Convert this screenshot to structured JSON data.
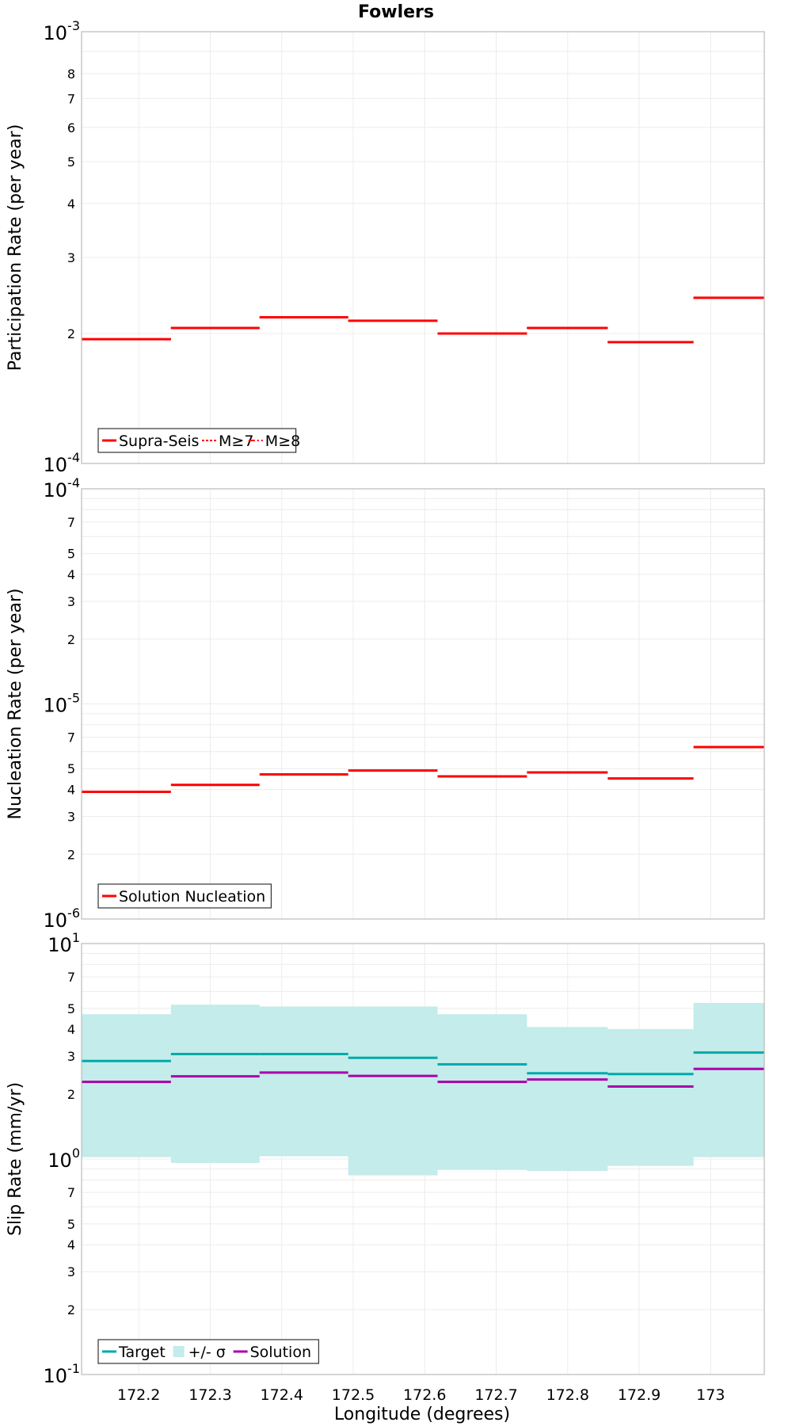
{
  "title": "Fowlers",
  "xlabel": "Longitude (degrees)",
  "x_ticks": [
    "172.2",
    "172.3",
    "172.4",
    "172.5",
    "172.6",
    "172.7",
    "172.8",
    "172.9",
    "173"
  ],
  "colors": {
    "supra_seis": "#ff0000",
    "target": "#00aaaa",
    "solution": "#aa00aa",
    "sigma_band": "#c3ecea",
    "grid": "#ececec",
    "frame": "#bbbbbb"
  },
  "chart_data": [
    {
      "type": "line",
      "step": true,
      "title": "Fowlers",
      "xlabel": "",
      "ylabel": "Participation Rate (per year)",
      "xlim": [
        172.12,
        173.075
      ],
      "ylim": [
        0.0001,
        0.001
      ],
      "yscale": "log",
      "grid": true,
      "legend_position": "bottom-left",
      "y_ticks": [
        {
          "value": 0.001,
          "base": "10",
          "exp": "-3"
        },
        {
          "value": 0.0008,
          "label": "8"
        },
        {
          "value": 0.0007,
          "label": "7"
        },
        {
          "value": 0.0006,
          "label": "6"
        },
        {
          "value": 0.0005,
          "label": "5"
        },
        {
          "value": 0.0004,
          "label": "4"
        },
        {
          "value": 0.0003,
          "label": "3"
        },
        {
          "value": 0.0002,
          "label": "2"
        },
        {
          "value": 0.0001,
          "base": "10",
          "exp": "-4"
        }
      ],
      "x_edges": [
        172.12,
        172.245,
        172.369,
        172.493,
        172.618,
        172.743,
        172.856,
        172.976,
        173.075
      ],
      "series": [
        {
          "name": "Supra-Seis",
          "dash": "solid",
          "color": "#ff0000",
          "values": [
            0.000194,
            0.000206,
            0.000218,
            0.000214,
            0.0002,
            0.000206,
            0.000191,
            0.000242
          ]
        },
        {
          "name": "M≥7",
          "dash": "dot",
          "color": "#ff0000",
          "values": [
            0.000194,
            0.000206,
            0.000218,
            0.000214,
            0.0002,
            0.000206,
            0.000191,
            0.000242
          ]
        },
        {
          "name": "M≥8",
          "dash": "dashdot",
          "color": "#ff0000",
          "values": [
            0.000194,
            0.000206,
            0.000218,
            0.000214,
            0.0002,
            0.000206,
            0.000191,
            0.000242
          ]
        }
      ]
    },
    {
      "type": "line",
      "step": true,
      "title": "",
      "xlabel": "",
      "ylabel": "Nucleation Rate (per year)",
      "xlim": [
        172.12,
        173.075
      ],
      "ylim": [
        1e-06,
        0.0001
      ],
      "yscale": "log",
      "grid": true,
      "legend_position": "bottom-left",
      "y_ticks": [
        {
          "value": 0.0001,
          "base": "10",
          "exp": "-4"
        },
        {
          "value": 7e-05,
          "label": "7"
        },
        {
          "value": 5e-05,
          "label": "5"
        },
        {
          "value": 4e-05,
          "label": "4"
        },
        {
          "value": 3e-05,
          "label": "3"
        },
        {
          "value": 2e-05,
          "label": "2"
        },
        {
          "value": 1e-05,
          "base": "10",
          "exp": "-5"
        },
        {
          "value": 7e-06,
          "label": "7"
        },
        {
          "value": 5e-06,
          "label": "5"
        },
        {
          "value": 4e-06,
          "label": "4"
        },
        {
          "value": 3e-06,
          "label": "3"
        },
        {
          "value": 2e-06,
          "label": "2"
        },
        {
          "value": 1e-06,
          "base": "10",
          "exp": "-6"
        }
      ],
      "x_edges": [
        172.12,
        172.245,
        172.369,
        172.493,
        172.618,
        172.743,
        172.856,
        172.976,
        173.075
      ],
      "series": [
        {
          "name": "Solution Nucleation",
          "dash": "solid",
          "color": "#ff0000",
          "values": [
            3.9e-06,
            4.2e-06,
            4.7e-06,
            4.9e-06,
            4.6e-06,
            4.8e-06,
            4.5e-06,
            6.3e-06
          ]
        }
      ]
    },
    {
      "type": "line",
      "step": true,
      "title": "",
      "xlabel": "Longitude (degrees)",
      "ylabel": "Slip Rate (mm/yr)",
      "xlim": [
        172.12,
        173.075
      ],
      "ylim": [
        0.1,
        10
      ],
      "yscale": "log",
      "grid": true,
      "legend_position": "bottom-left",
      "y_ticks": [
        {
          "value": 10,
          "base": "10",
          "exp": "1"
        },
        {
          "value": 7,
          "label": "7"
        },
        {
          "value": 5,
          "label": "5"
        },
        {
          "value": 4,
          "label": "4"
        },
        {
          "value": 3,
          "label": "3"
        },
        {
          "value": 2,
          "label": "2"
        },
        {
          "value": 1,
          "base": "10",
          "exp": "0"
        },
        {
          "value": 0.7,
          "label": "7"
        },
        {
          "value": 0.5,
          "label": "5"
        },
        {
          "value": 0.4,
          "label": "4"
        },
        {
          "value": 0.3,
          "label": "3"
        },
        {
          "value": 0.2,
          "label": "2"
        },
        {
          "value": 0.1,
          "base": "10",
          "exp": "-1"
        }
      ],
      "x_ticks": [
        172.2,
        172.3,
        172.4,
        172.5,
        172.6,
        172.7,
        172.8,
        172.9,
        173.0
      ],
      "x_edges": [
        172.12,
        172.245,
        172.369,
        172.493,
        172.618,
        172.743,
        172.856,
        172.976,
        173.075
      ],
      "band": {
        "name": "+/- σ",
        "color": "#c3ecea",
        "lower": [
          1.02,
          0.96,
          1.03,
          0.84,
          0.89,
          0.88,
          0.93,
          1.02
        ],
        "upper": [
          4.7,
          5.2,
          5.1,
          5.1,
          4.7,
          4.1,
          4.0,
          5.3
        ]
      },
      "series": [
        {
          "name": "Target",
          "dash": "solid",
          "color": "#00aaaa",
          "values": [
            2.85,
            3.07,
            3.07,
            2.95,
            2.75,
            2.5,
            2.48,
            3.12
          ]
        },
        {
          "name": "Solution",
          "dash": "solid",
          "color": "#aa00aa",
          "values": [
            2.28,
            2.42,
            2.52,
            2.43,
            2.28,
            2.34,
            2.17,
            2.62
          ]
        }
      ]
    }
  ]
}
